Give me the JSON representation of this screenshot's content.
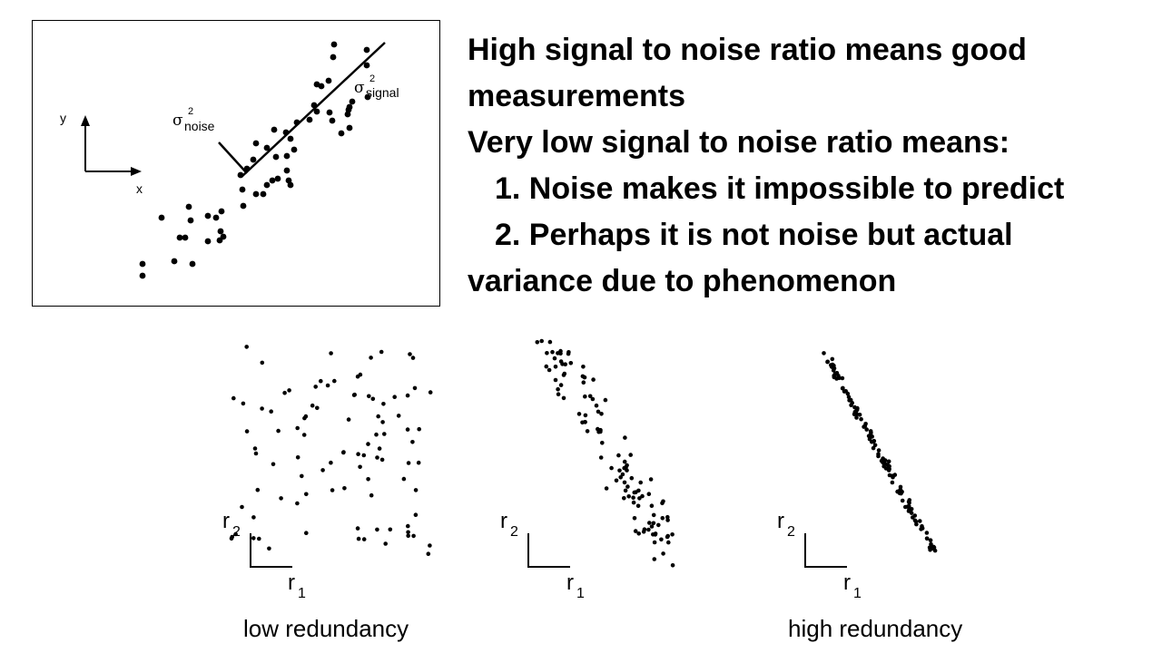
{
  "figure": {
    "axis_y": "y",
    "axis_x": "x",
    "noise_symbol": "σ",
    "noise_exp": "2",
    "noise_sub": "noise",
    "signal_symbol": "σ",
    "signal_exp": "2",
    "signal_sub": "signal"
  },
  "bullets": {
    "line1": "High signal to noise ratio means good",
    "line2": "measurements",
    "line3": "Very low signal to noise ratio means:",
    "line4": "1. Noise makes it impossible to predict",
    "line5": "2. Perhaps it is not noise but actual",
    "line6": "variance due to phenomenon"
  },
  "plots": [
    {
      "axis_r2": "r",
      "axis_r2_sub": "2",
      "axis_r1": "r",
      "axis_r1_sub": "1",
      "caption": "low redundancy"
    },
    {
      "axis_r2": "r",
      "axis_r2_sub": "2",
      "axis_r1": "r",
      "axis_r1_sub": "1",
      "caption": ""
    },
    {
      "axis_r2": "r",
      "axis_r2_sub": "2",
      "axis_r1": "r",
      "axis_r1_sub": "1",
      "caption": "high redundancy"
    }
  ]
}
